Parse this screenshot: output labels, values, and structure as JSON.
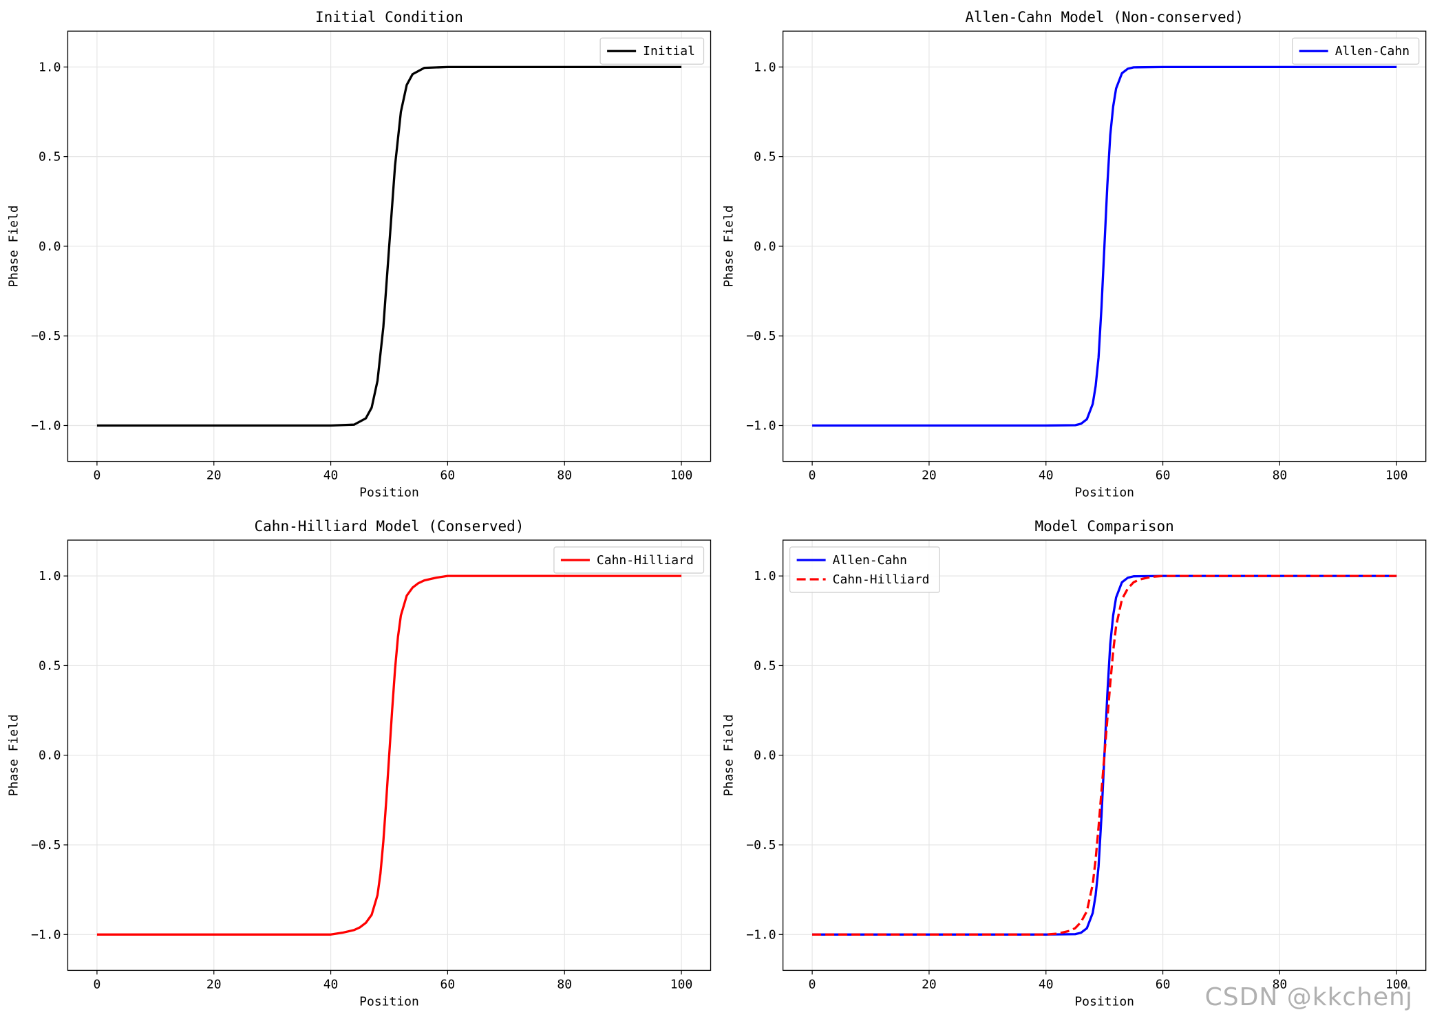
{
  "watermark": "CSDN @kkchenj",
  "chart_data": [
    {
      "type": "line",
      "title": "Initial Condition",
      "xlabel": "Position",
      "ylabel": "Phase Field",
      "xlim": [
        -5,
        105
      ],
      "ylim": [
        -1.2,
        1.2
      ],
      "xticks": [
        0,
        20,
        40,
        60,
        80,
        100
      ],
      "yticks": [
        -1.0,
        -0.5,
        0.0,
        0.5,
        1.0
      ],
      "ytick_labels": [
        "−1.0",
        "−0.5",
        "0.0",
        "0.5",
        "1.0"
      ],
      "grid": true,
      "legend": "top-right",
      "series": [
        {
          "name": "Initial",
          "color": "#000000",
          "style": "solid",
          "x": [
            0,
            10,
            20,
            30,
            40,
            44,
            46,
            47,
            48,
            49,
            50,
            51,
            52,
            53,
            54,
            56,
            60,
            70,
            80,
            90,
            100
          ],
          "y": [
            -1.0,
            -1.0,
            -1.0,
            -1.0,
            -1.0,
            -0.995,
            -0.96,
            -0.9,
            -0.75,
            -0.45,
            0.0,
            0.45,
            0.75,
            0.9,
            0.96,
            0.995,
            1.0,
            1.0,
            1.0,
            1.0,
            1.0
          ]
        }
      ]
    },
    {
      "type": "line",
      "title": "Allen-Cahn Model (Non-conserved)",
      "xlabel": "Position",
      "ylabel": "Phase Field",
      "xlim": [
        -5,
        105
      ],
      "ylim": [
        -1.2,
        1.2
      ],
      "xticks": [
        0,
        20,
        40,
        60,
        80,
        100
      ],
      "yticks": [
        -1.0,
        -0.5,
        0.0,
        0.5,
        1.0
      ],
      "ytick_labels": [
        "−1.0",
        "−0.5",
        "0.0",
        "0.5",
        "1.0"
      ],
      "grid": true,
      "legend": "top-right",
      "series": [
        {
          "name": "Allen-Cahn",
          "color": "#0000ff",
          "style": "solid",
          "x": [
            0,
            10,
            20,
            30,
            40,
            45,
            46,
            47,
            48,
            48.5,
            49,
            49.5,
            50,
            50.5,
            51,
            51.5,
            52,
            53,
            54,
            55,
            60,
            70,
            80,
            90,
            100
          ],
          "y": [
            -1.0,
            -1.0,
            -1.0,
            -1.0,
            -1.0,
            -0.998,
            -0.99,
            -0.965,
            -0.88,
            -0.78,
            -0.62,
            -0.34,
            0.0,
            0.34,
            0.62,
            0.78,
            0.88,
            0.965,
            0.99,
            0.998,
            1.0,
            1.0,
            1.0,
            1.0,
            1.0
          ]
        }
      ]
    },
    {
      "type": "line",
      "title": "Cahn-Hilliard Model (Conserved)",
      "xlabel": "Position",
      "ylabel": "Phase Field",
      "xlim": [
        -5,
        105
      ],
      "ylim": [
        -1.2,
        1.2
      ],
      "xticks": [
        0,
        20,
        40,
        60,
        80,
        100
      ],
      "yticks": [
        -1.0,
        -0.5,
        0.0,
        0.5,
        1.0
      ],
      "ytick_labels": [
        "−1.0",
        "−0.5",
        "0.0",
        "0.5",
        "1.0"
      ],
      "grid": true,
      "legend": "top-right",
      "series": [
        {
          "name": "Cahn-Hilliard",
          "color": "#ff0000",
          "style": "solid",
          "x": [
            0,
            10,
            20,
            30,
            40,
            42,
            44,
            45,
            46,
            47,
            48,
            48.5,
            49,
            49.5,
            50,
            50.5,
            51,
            51.5,
            52,
            53,
            54,
            55,
            56,
            58,
            60,
            70,
            80,
            90,
            100
          ],
          "y": [
            -1.0,
            -1.0,
            -1.0,
            -1.0,
            -1.0,
            -0.99,
            -0.975,
            -0.96,
            -0.935,
            -0.89,
            -0.78,
            -0.66,
            -0.48,
            -0.25,
            0.0,
            0.25,
            0.48,
            0.66,
            0.78,
            0.89,
            0.935,
            0.96,
            0.975,
            0.99,
            1.0,
            1.0,
            1.0,
            1.0,
            1.0
          ]
        }
      ]
    },
    {
      "type": "line",
      "title": "Model Comparison",
      "xlabel": "Position",
      "ylabel": "Phase Field",
      "xlim": [
        -5,
        105
      ],
      "ylim": [
        -1.2,
        1.2
      ],
      "xticks": [
        0,
        20,
        40,
        60,
        80,
        100
      ],
      "yticks": [
        -1.0,
        -0.5,
        0.0,
        0.5,
        1.0
      ],
      "ytick_labels": [
        "−1.0",
        "−0.5",
        "0.0",
        "0.5",
        "1.0"
      ],
      "grid": true,
      "legend": "top-left",
      "series": [
        {
          "name": "Allen-Cahn",
          "color": "#0000ff",
          "style": "solid",
          "x": [
            0,
            10,
            20,
            30,
            40,
            45,
            46,
            47,
            48,
            48.5,
            49,
            49.5,
            50,
            50.5,
            51,
            51.5,
            52,
            53,
            54,
            55,
            60,
            70,
            80,
            90,
            100
          ],
          "y": [
            -1.0,
            -1.0,
            -1.0,
            -1.0,
            -1.0,
            -0.998,
            -0.99,
            -0.965,
            -0.88,
            -0.78,
            -0.62,
            -0.34,
            0.0,
            0.34,
            0.62,
            0.78,
            0.88,
            0.965,
            0.99,
            0.998,
            1.0,
            1.0,
            1.0,
            1.0,
            1.0
          ]
        },
        {
          "name": "Cahn-Hilliard",
          "color": "#ff0000",
          "style": "dashed",
          "x": [
            0,
            10,
            20,
            30,
            40,
            42,
            44,
            45,
            46,
            47,
            48,
            48.5,
            49,
            49.5,
            50,
            50.5,
            51,
            51.5,
            52,
            53,
            54,
            55,
            56,
            58,
            60,
            70,
            80,
            90,
            100
          ],
          "y": [
            -1.0,
            -1.0,
            -1.0,
            -1.0,
            -1.0,
            -0.995,
            -0.98,
            -0.965,
            -0.93,
            -0.87,
            -0.72,
            -0.58,
            -0.4,
            -0.2,
            0.0,
            0.2,
            0.4,
            0.58,
            0.72,
            0.87,
            0.93,
            0.965,
            0.98,
            0.995,
            1.0,
            1.0,
            1.0,
            1.0,
            1.0
          ]
        }
      ]
    }
  ]
}
